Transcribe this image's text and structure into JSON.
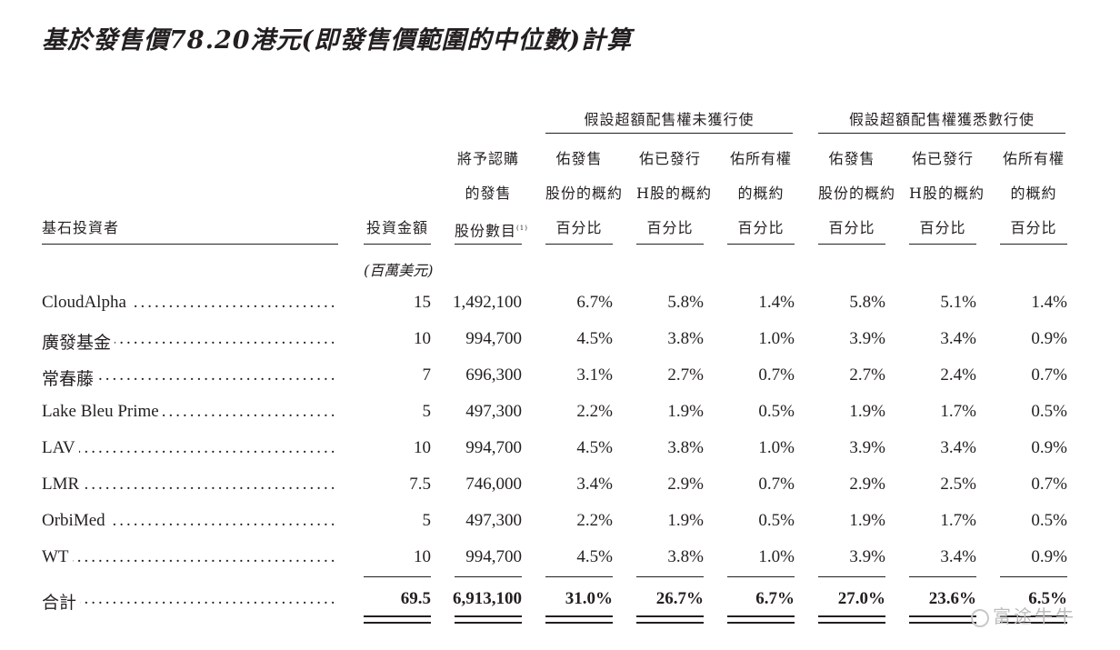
{
  "title": "基於發售價78.20港元(即發售價範圍的中位數)計算",
  "group_headers": {
    "not_exercised": "假設超額配售權未獲行使",
    "fully_exercised": "假設超額配售權獲悉數行使"
  },
  "columns": {
    "investor": "基石投資者",
    "amount": "投資金額",
    "shares": [
      "將予認購",
      "的發售",
      "股份數目"
    ],
    "shares_note": "(1)",
    "pct_offer": [
      "佑發售",
      "股份的概約",
      "百分比"
    ],
    "pct_h": [
      "佑已發行",
      "H股的概約",
      "百分比"
    ],
    "pct_all": [
      "佑所有權",
      "的概約",
      "百分比"
    ],
    "pct_offer2": [
      "佑發售",
      "股份的概約",
      "百分比"
    ],
    "pct_h2": [
      "佑已發行",
      "H股的概約",
      "百分比"
    ],
    "pct_all2": [
      "佑所有權",
      "的概約",
      "百分比"
    ]
  },
  "unit_label": "(百萬美元)",
  "dots": "............................................................",
  "rows": [
    {
      "name": "CloudAlpha",
      "amount": "15",
      "shares": "1,492,100",
      "c1": "6.7%",
      "c2": "5.8%",
      "c3": "1.4%",
      "c4": "5.8%",
      "c5": "5.1%",
      "c6": "1.4%"
    },
    {
      "name": "廣發基金",
      "amount": "10",
      "shares": "994,700",
      "c1": "4.5%",
      "c2": "3.8%",
      "c3": "1.0%",
      "c4": "3.9%",
      "c5": "3.4%",
      "c6": "0.9%"
    },
    {
      "name": "常春藤",
      "amount": "7",
      "shares": "696,300",
      "c1": "3.1%",
      "c2": "2.7%",
      "c3": "0.7%",
      "c4": "2.7%",
      "c5": "2.4%",
      "c6": "0.7%"
    },
    {
      "name": "Lake Bleu Prime",
      "amount": "5",
      "shares": "497,300",
      "c1": "2.2%",
      "c2": "1.9%",
      "c3": "0.5%",
      "c4": "1.9%",
      "c5": "1.7%",
      "c6": "0.5%"
    },
    {
      "name": "LAV",
      "amount": "10",
      "shares": "994,700",
      "c1": "4.5%",
      "c2": "3.8%",
      "c3": "1.0%",
      "c4": "3.9%",
      "c5": "3.4%",
      "c6": "0.9%"
    },
    {
      "name": "LMR",
      "amount": "7.5",
      "shares": "746,000",
      "c1": "3.4%",
      "c2": "2.9%",
      "c3": "0.7%",
      "c4": "2.9%",
      "c5": "2.5%",
      "c6": "0.7%"
    },
    {
      "name": "OrbiMed",
      "amount": "5",
      "shares": "497,300",
      "c1": "2.2%",
      "c2": "1.9%",
      "c3": "0.5%",
      "c4": "1.9%",
      "c5": "1.7%",
      "c6": "0.5%"
    },
    {
      "name": "WT",
      "amount": "10",
      "shares": "994,700",
      "c1": "4.5%",
      "c2": "3.8%",
      "c3": "1.0%",
      "c4": "3.9%",
      "c5": "3.4%",
      "c6": "0.9%"
    }
  ],
  "total": {
    "name": "合計",
    "amount": "69.5",
    "shares": "6,913,100",
    "c1": "31.0%",
    "c2": "26.7%",
    "c3": "6.7%",
    "c4": "27.0%",
    "c5": "23.6%",
    "c6": "6.5%"
  },
  "watermark": "富途牛牛"
}
